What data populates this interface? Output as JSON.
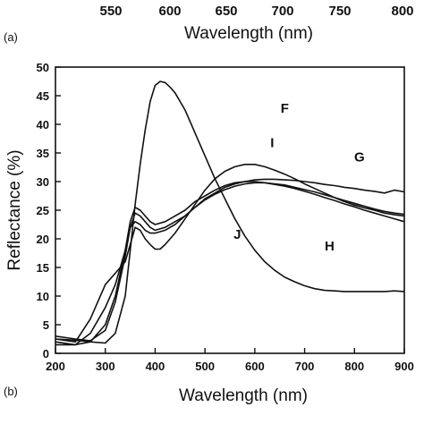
{
  "panel_a": {
    "label": "(a)",
    "xlabel": "Wavelength (nm)",
    "ticks": [
      550,
      600,
      650,
      700,
      750,
      800
    ]
  },
  "chart_data": {
    "type": "line",
    "panel_label": "(b)",
    "xlabel": "Wavelength (nm)",
    "ylabel": "Reflectance (%)",
    "xlim": [
      200,
      900
    ],
    "ylim": [
      0,
      50
    ],
    "xticks": [
      200,
      300,
      400,
      500,
      600,
      700,
      800,
      900
    ],
    "yticks": [
      0,
      5,
      10,
      15,
      20,
      25,
      30,
      35,
      40,
      45,
      50
    ],
    "grid": false,
    "legend": "none (curves labeled directly)",
    "series": [
      {
        "name": "F",
        "x": [
          200,
          240,
          270,
          300,
          320,
          340,
          350,
          360,
          370,
          380,
          390,
          400,
          410,
          420,
          430,
          440,
          460,
          480,
          500,
          520,
          540,
          560,
          580,
          600,
          620,
          640,
          660,
          680,
          700,
          720,
          740,
          760,
          780,
          800,
          820,
          840,
          860,
          880,
          900
        ],
        "y": [
          2.5,
          2.3,
          2.0,
          1.8,
          3.5,
          10,
          18,
          26,
          33,
          39,
          44,
          46.8,
          47.5,
          47.3,
          46.5,
          45.5,
          42.5,
          38.5,
          34.5,
          30.5,
          27,
          23.5,
          20.5,
          18,
          16,
          14.5,
          13.3,
          12.5,
          11.8,
          11.3,
          11,
          10.9,
          10.8,
          10.8,
          10.8,
          10.8,
          10.8,
          10.9,
          10.8
        ]
      },
      {
        "name": "G",
        "x": [
          200,
          240,
          270,
          300,
          320,
          340,
          350,
          360,
          370,
          380,
          390,
          400,
          420,
          440,
          460,
          480,
          500,
          520,
          540,
          560,
          580,
          600,
          620,
          640,
          660,
          680,
          700,
          720,
          740,
          760,
          780,
          800,
          820,
          840,
          860,
          880,
          900
        ],
        "y": [
          3,
          2.5,
          2.2,
          4,
          9,
          17,
          22,
          24.5,
          24,
          23,
          22,
          21.5,
          22,
          23,
          24,
          25.5,
          27,
          28,
          29,
          29.6,
          30,
          30.3,
          30.4,
          30.4,
          30.3,
          30.2,
          30,
          29.8,
          29.5,
          29.3,
          29,
          28.8,
          28.5,
          28.3,
          28,
          28.5,
          28.2
        ]
      },
      {
        "name": "H",
        "x": [
          200,
          240,
          270,
          300,
          320,
          340,
          350,
          360,
          370,
          380,
          390,
          400,
          420,
          440,
          460,
          480,
          500,
          520,
          540,
          560,
          580,
          600,
          620,
          640,
          660,
          680,
          700,
          720,
          740,
          760,
          780,
          800,
          820,
          840,
          860,
          880,
          900
        ],
        "y": [
          2,
          1.5,
          2,
          5,
          10,
          18,
          23,
          25.5,
          25,
          24,
          23,
          22.5,
          23,
          24,
          25,
          26.5,
          27.5,
          28.5,
          29.3,
          29.8,
          30,
          30,
          29.8,
          29.5,
          29.2,
          28.8,
          28.3,
          27.8,
          27.2,
          26.7,
          26.1,
          25.6,
          25,
          24.5,
          24,
          23.5,
          23
        ]
      },
      {
        "name": "I",
        "x": [
          200,
          240,
          270,
          300,
          320,
          340,
          350,
          360,
          370,
          380,
          390,
          400,
          410,
          420,
          440,
          460,
          480,
          500,
          520,
          540,
          560,
          580,
          600,
          620,
          640,
          660,
          680,
          700,
          720,
          740,
          760,
          780,
          800,
          820,
          840,
          860,
          880,
          900
        ],
        "y": [
          2.5,
          2,
          6,
          12,
          14,
          16,
          19,
          22,
          21.5,
          20,
          19,
          18.2,
          18.2,
          19,
          21,
          23.5,
          26,
          28.5,
          30.5,
          31.8,
          32.6,
          33,
          33,
          32.6,
          32,
          31.3,
          30.5,
          29.6,
          28.8,
          28,
          27.2,
          26.5,
          25.9,
          25.4,
          25,
          24.5,
          24.2,
          24
        ]
      },
      {
        "name": "J",
        "x": [
          200,
          240,
          270,
          300,
          320,
          340,
          350,
          360,
          370,
          380,
          390,
          400,
          420,
          440,
          460,
          480,
          500,
          520,
          540,
          560,
          580,
          600,
          620,
          640,
          660,
          680,
          700,
          720,
          740,
          760,
          780,
          800,
          820,
          840,
          860,
          880,
          900
        ],
        "y": [
          1.5,
          1.5,
          3.5,
          8,
          12,
          18,
          22,
          23,
          22.5,
          21.5,
          21,
          21,
          21.5,
          22.5,
          24,
          25.5,
          26.8,
          27.8,
          28.6,
          29.2,
          29.6,
          29.8,
          29.8,
          29.6,
          29.4,
          29,
          28.6,
          28.2,
          27.7,
          27.2,
          26.7,
          26.2,
          25.7,
          25.2,
          24.8,
          24.5,
          24.3
        ]
      }
    ],
    "annotations": [
      {
        "text": "F",
        "x": 660,
        "y": 42
      },
      {
        "text": "I",
        "x": 635,
        "y": 36
      },
      {
        "text": "G",
        "x": 810,
        "y": 33.5
      },
      {
        "text": "J",
        "x": 565,
        "y": 20
      },
      {
        "text": "H",
        "x": 750,
        "y": 18
      }
    ]
  }
}
